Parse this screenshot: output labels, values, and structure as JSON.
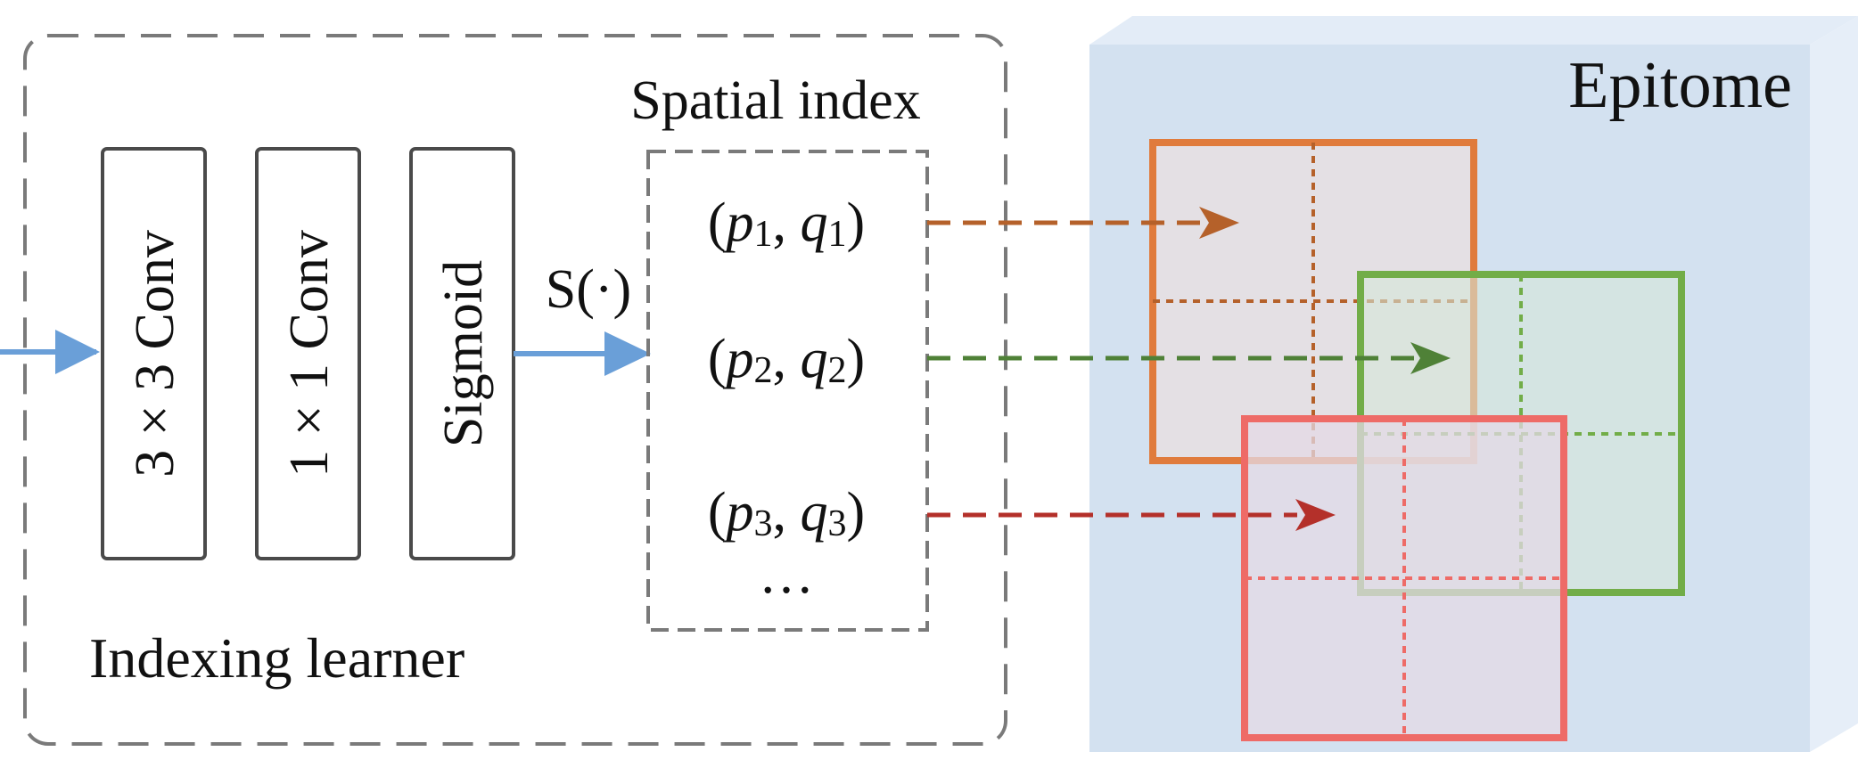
{
  "indexing_learner": {
    "label": "Indexing learner",
    "layers": [
      "3 × 3 Conv",
      "1 × 1 Conv",
      "Sigmoid"
    ],
    "function_label": "S(·)"
  },
  "spatial_index": {
    "title": "Spatial index",
    "entries": [
      {
        "p": "p",
        "p_sub": "1",
        "q": "q",
        "q_sub": "1"
      },
      {
        "p": "p",
        "p_sub": "2",
        "q": "q",
        "q_sub": "2"
      },
      {
        "p": "p",
        "p_sub": "3",
        "q": "q",
        "q_sub": "3"
      }
    ],
    "ellipsis": "…"
  },
  "epitome": {
    "title": "Epitome",
    "face_color": "#d3e1f0",
    "patch_colors": [
      "#e07b3c",
      "#72ad48",
      "#ee6b67"
    ],
    "arrow_colors": [
      "#b5612a",
      "#4f8137",
      "#b4302a"
    ]
  },
  "colors": {
    "input_arrow": "#6a9fd8",
    "dashed_box": "#7a7a7a",
    "layer_box": "#4a4a4a"
  }
}
